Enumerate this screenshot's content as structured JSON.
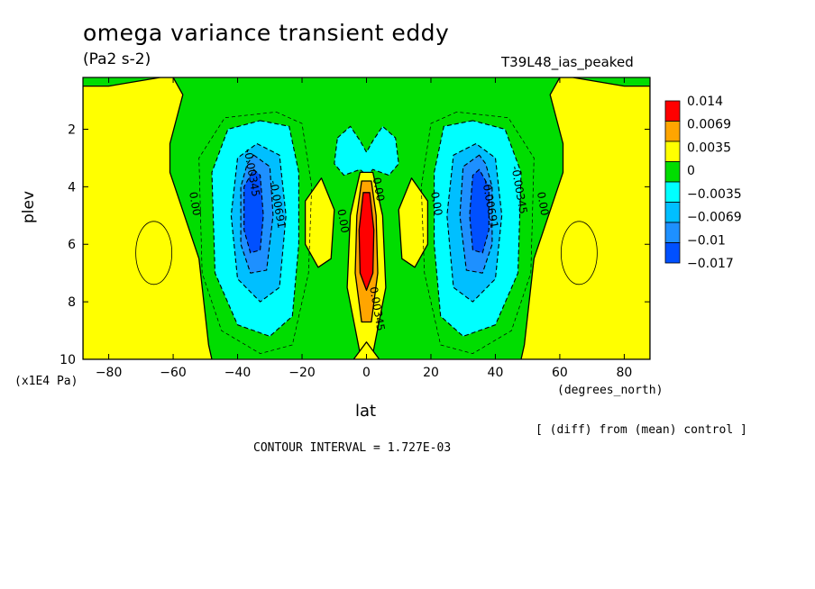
{
  "header": {
    "title": "omega variance transient eddy",
    "units": "(Pa2 s-2)",
    "run_name": "T39L48_ias_peaked"
  },
  "footer": {
    "diff_note": "[ (diff) from (mean) control ]",
    "contour_interval": "CONTOUR INTERVAL = 1.727E-03"
  },
  "chart_data": {
    "type": "heatmap",
    "subtype": "filled-contour",
    "title": "omega variance transient eddy",
    "subtitle": "(Pa2 s-2)",
    "xlabel": "lat",
    "xunits": "(degrees_north)",
    "ylabel": "plev",
    "yunits": "(x1E4 Pa)",
    "xlim": [
      -88,
      88
    ],
    "ylim": [
      10,
      0.2
    ],
    "y_inverted": true,
    "x_ticks": [
      -80,
      -60,
      -40,
      -20,
      0,
      20,
      40,
      60,
      80
    ],
    "y_ticks": [
      2,
      4,
      6,
      8,
      10
    ],
    "colorbar": {
      "labels": [
        "0.014",
        "0.0069",
        "0.0035",
        "0",
        "-0.0035",
        "-0.0069",
        "-0.01",
        "-0.017"
      ],
      "colors": [
        "#ff0000",
        "#ffa500",
        "#ffff00",
        "#00dd00",
        "#00ffff",
        "#00bfff",
        "#1e90ff",
        "#0050ff"
      ]
    },
    "background_level_color": "#00dd00",
    "regions": [
      {
        "label": "0.0035",
        "color": "#ffff00",
        "points": [
          [
            -88,
            0.5
          ],
          [
            -80,
            0.5
          ],
          [
            -64,
            0.2
          ],
          [
            -60,
            0.2
          ],
          [
            -57,
            0.8
          ],
          [
            -61,
            2.5
          ],
          [
            -61,
            3.5
          ],
          [
            -52,
            6.5
          ],
          [
            -49,
            9.5
          ],
          [
            -48,
            10
          ],
          [
            -88,
            10
          ]
        ]
      },
      {
        "label": "0.0035",
        "color": "#ffff00",
        "points": [
          [
            88,
            0.5
          ],
          [
            80,
            0.5
          ],
          [
            64,
            0.2
          ],
          [
            60,
            0.2
          ],
          [
            57,
            0.8
          ],
          [
            61,
            2.5
          ],
          [
            61,
            3.5
          ],
          [
            52,
            6.5
          ],
          [
            49,
            9.5
          ],
          [
            48,
            10
          ],
          [
            88,
            10
          ]
        ]
      },
      {
        "label": "-0.0035",
        "color": "#00ffff",
        "points": [
          [
            -33,
            1.7
          ],
          [
            -24,
            1.9
          ],
          [
            -21,
            3.5
          ],
          [
            -21,
            6
          ],
          [
            -23,
            8.5
          ],
          [
            -30,
            9.2
          ],
          [
            -40,
            8.8
          ],
          [
            -47,
            7
          ],
          [
            -48,
            3.5
          ],
          [
            -43,
            2
          ]
        ]
      },
      {
        "label": "-0.0069",
        "color": "#00bfff",
        "points": [
          [
            -34,
            2.5
          ],
          [
            -27,
            2.9
          ],
          [
            -25,
            5
          ],
          [
            -27,
            7.5
          ],
          [
            -33,
            8
          ],
          [
            -40,
            7.2
          ],
          [
            -42,
            5
          ],
          [
            -40,
            3
          ]
        ]
      },
      {
        "label": "-0.01",
        "color": "#1e90ff",
        "points": [
          [
            -35,
            2.9
          ],
          [
            -30,
            3.3
          ],
          [
            -29,
            5
          ],
          [
            -31,
            6.9
          ],
          [
            -36,
            7
          ],
          [
            -39,
            6
          ],
          [
            -39,
            4
          ],
          [
            -37,
            3.2
          ]
        ]
      },
      {
        "label": "-0.017",
        "color": "#0050ff",
        "points": [
          [
            -35,
            3.4
          ],
          [
            -33,
            3.6
          ],
          [
            -32,
            5
          ],
          [
            -33,
            6.2
          ],
          [
            -36,
            6.3
          ],
          [
            -38,
            5.5
          ],
          [
            -38,
            4
          ]
        ]
      },
      {
        "label": "-0.0035",
        "color": "#00ffff",
        "points": [
          [
            33,
            1.7
          ],
          [
            24,
            1.9
          ],
          [
            21,
            3.5
          ],
          [
            21,
            6
          ],
          [
            23,
            8.5
          ],
          [
            30,
            9.2
          ],
          [
            40,
            8.8
          ],
          [
            47,
            7
          ],
          [
            48,
            3.5
          ],
          [
            43,
            2
          ]
        ]
      },
      {
        "label": "-0.0069",
        "color": "#00bfff",
        "points": [
          [
            34,
            2.5
          ],
          [
            27,
            2.9
          ],
          [
            25,
            5
          ],
          [
            27,
            7.5
          ],
          [
            33,
            8
          ],
          [
            40,
            7.2
          ],
          [
            42,
            5
          ],
          [
            40,
            3
          ]
        ]
      },
      {
        "label": "-0.01",
        "color": "#1e90ff",
        "points": [
          [
            35,
            2.9
          ],
          [
            30,
            3.3
          ],
          [
            29,
            5
          ],
          [
            31,
            6.9
          ],
          [
            36,
            7
          ],
          [
            39,
            6
          ],
          [
            39,
            4
          ],
          [
            37,
            3.2
          ]
        ]
      },
      {
        "label": "-0.017",
        "color": "#0050ff",
        "points": [
          [
            35,
            3.4
          ],
          [
            33,
            3.6
          ],
          [
            32,
            5
          ],
          [
            33,
            6.2
          ],
          [
            36,
            6.3
          ],
          [
            38,
            5.5
          ],
          [
            38,
            4
          ]
        ]
      },
      {
        "label": "-0.0035",
        "color": "#00ffff",
        "points": [
          [
            -9,
            2.3
          ],
          [
            -5,
            1.9
          ],
          [
            -2,
            2.4
          ],
          [
            0,
            2.8
          ],
          [
            2,
            2.4
          ],
          [
            5,
            1.9
          ],
          [
            9,
            2.3
          ],
          [
            10,
            3.2
          ],
          [
            7,
            3.6
          ],
          [
            2,
            3.4
          ],
          [
            0,
            3.6
          ],
          [
            -2,
            3.4
          ],
          [
            -7,
            3.6
          ],
          [
            -10,
            3.2
          ]
        ]
      },
      {
        "label": "0.0035",
        "color": "#ffff00",
        "points": [
          [
            -19,
            4.5
          ],
          [
            -14,
            3.7
          ],
          [
            -10,
            4.8
          ],
          [
            -11,
            6.5
          ],
          [
            -15,
            6.8
          ],
          [
            -19,
            6
          ]
        ]
      },
      {
        "label": "0.0035",
        "color": "#ffff00",
        "points": [
          [
            19,
            4.5
          ],
          [
            14,
            3.7
          ],
          [
            10,
            4.8
          ],
          [
            11,
            6.5
          ],
          [
            15,
            6.8
          ],
          [
            19,
            6
          ]
        ]
      },
      {
        "label": "0.0035",
        "color": "#ffff00",
        "points": [
          [
            -2,
            3.5
          ],
          [
            2,
            3.5
          ],
          [
            5,
            5
          ],
          [
            6,
            7.5
          ],
          [
            2,
            9.8
          ],
          [
            -2,
            9.8
          ],
          [
            -6,
            7.5
          ],
          [
            -5,
            5
          ]
        ]
      },
      {
        "label": "0.0035",
        "color": "#ffff00",
        "points": [
          [
            -4,
            10
          ],
          [
            0,
            9.4
          ],
          [
            4,
            10
          ]
        ]
      },
      {
        "label": "0.0069",
        "color": "#ffa500",
        "points": [
          [
            -1.5,
            3.8
          ],
          [
            1.5,
            3.8
          ],
          [
            3,
            5
          ],
          [
            3.5,
            7
          ],
          [
            1.5,
            8.7
          ],
          [
            -1.5,
            8.7
          ],
          [
            -3.5,
            7
          ],
          [
            -3,
            5
          ]
        ]
      },
      {
        "label": "0.014",
        "color": "#ff0000",
        "points": [
          [
            -1,
            4.2
          ],
          [
            1,
            4.2
          ],
          [
            2.3,
            5.5
          ],
          [
            2,
            7
          ],
          [
            0,
            7.6
          ],
          [
            -2,
            7
          ],
          [
            -2.3,
            5.5
          ]
        ]
      }
    ],
    "contour_labels": [
      {
        "text": "-0.00345",
        "lat": -38,
        "plev": 2.7
      },
      {
        "text": "-0.00691",
        "lat": -30,
        "plev": 3.8
      },
      {
        "text": "0.00",
        "lat": -55,
        "plev": 4.2
      },
      {
        "text": "0.00",
        "lat": -9,
        "plev": 4.8
      },
      {
        "text": "0.00",
        "lat": 2,
        "plev": 3.7
      },
      {
        "text": "0.00345",
        "lat": 1,
        "plev": 7.5
      },
      {
        "text": "0.00",
        "lat": 20,
        "plev": 4.2
      },
      {
        "text": "-0.00691",
        "lat": 36,
        "plev": 3.8
      },
      {
        "text": "-0.00345",
        "lat": 45,
        "plev": 3.3
      },
      {
        "text": "0.00",
        "lat": 53,
        "plev": 4.2
      }
    ]
  }
}
